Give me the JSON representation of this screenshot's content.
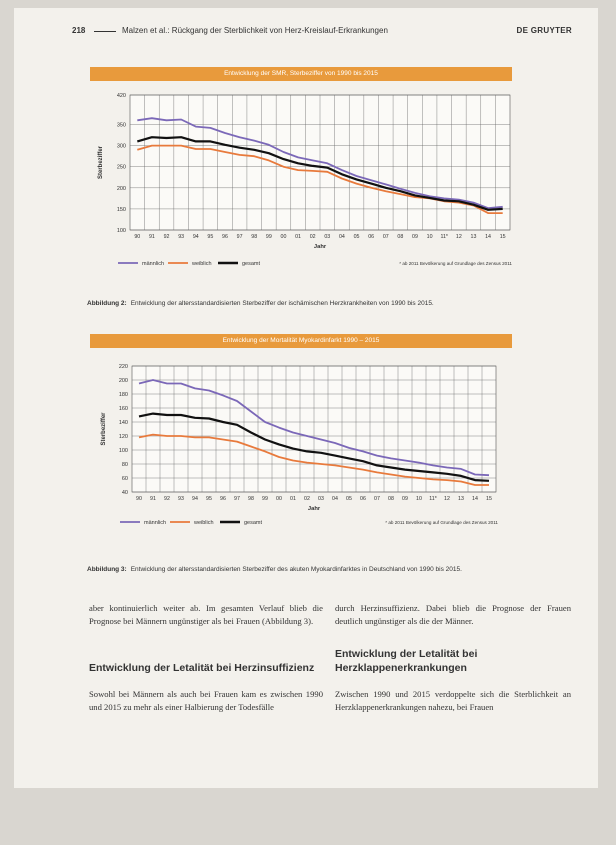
{
  "header": {
    "page_number": "218",
    "running_title": "Malzen et al.: Rückgang der Sterblichkeit von Herz-Kreislauf-Erkrankungen",
    "publisher": "DE GRUYTER"
  },
  "figure1": {
    "band_title": "Entwicklung der SMR, Sterbeziffer von 1990 bis 2015",
    "caption_label": "Abbildung 2:",
    "caption_text": "Entwicklung der altersstandardisierten Sterbeziffer der ischämischen Herzkrankheiten von 1990 bis 2015.",
    "footnote": "* ab 2011 Bevölkerung auf Grundlage des Zensus 2011"
  },
  "figure2": {
    "band_title": "Entwicklung der Mortalität Myokardinfarkt 1990 – 2015",
    "caption_label": "Abbildung 3:",
    "caption_text": "Entwicklung der altersstandardisierten Sterbeziffer des akuten Myokardinfarktes in Deutschland von 1990 bis 2015.",
    "footnote": "* ab 2011 Bevölkerung auf Grundlage des Zensus 2011"
  },
  "chart_data": [
    {
      "type": "line",
      "ylabel": "Sterbeziffer",
      "xlabel": "Jahr",
      "categories": [
        "90",
        "91",
        "92",
        "93",
        "94",
        "95",
        "96",
        "97",
        "98",
        "99",
        "00",
        "01",
        "02",
        "03",
        "04",
        "05",
        "06",
        "07",
        "08",
        "09",
        "10",
        "11*",
        "12",
        "13",
        "14",
        "15"
      ],
      "ylim": [
        100,
        420
      ],
      "yticks": [
        100,
        150,
        200,
        250,
        300,
        350,
        420
      ],
      "grid": true,
      "legend": "bottom-left",
      "series": [
        {
          "name": "männlich",
          "color": "#7b68b8",
          "values": [
            360,
            365,
            360,
            362,
            345,
            342,
            330,
            320,
            312,
            302,
            285,
            272,
            265,
            258,
            242,
            228,
            218,
            208,
            198,
            188,
            180,
            175,
            172,
            165,
            152,
            155
          ]
        },
        {
          "name": "weiblich",
          "color": "#e87a3c",
          "values": [
            290,
            300,
            300,
            300,
            292,
            292,
            285,
            278,
            275,
            265,
            250,
            242,
            240,
            238,
            222,
            210,
            200,
            192,
            185,
            178,
            175,
            168,
            165,
            158,
            140,
            140
          ]
        },
        {
          "name": "gesamt",
          "color": "#111111",
          "values": [
            310,
            320,
            318,
            320,
            310,
            310,
            302,
            295,
            290,
            282,
            268,
            258,
            252,
            248,
            232,
            220,
            210,
            200,
            192,
            182,
            176,
            170,
            168,
            160,
            148,
            150
          ]
        }
      ]
    },
    {
      "type": "line",
      "ylabel": "Sterbeziffer",
      "xlabel": "Jahr",
      "categories": [
        "90",
        "91",
        "92",
        "93",
        "94",
        "95",
        "96",
        "97",
        "98",
        "99",
        "00",
        "01",
        "02",
        "03",
        "04",
        "05",
        "06",
        "07",
        "08",
        "09",
        "10",
        "11*",
        "12",
        "13",
        "14",
        "15"
      ],
      "ylim": [
        40,
        220
      ],
      "yticks": [
        40,
        60,
        80,
        100,
        120,
        140,
        160,
        180,
        200,
        220
      ],
      "grid": true,
      "legend": "bottom-left",
      "series": [
        {
          "name": "männlich",
          "color": "#7b68b8",
          "values": [
            195,
            200,
            195,
            195,
            188,
            185,
            178,
            170,
            155,
            140,
            132,
            125,
            120,
            115,
            110,
            103,
            98,
            92,
            88,
            85,
            82,
            78,
            75,
            73,
            65,
            64
          ]
        },
        {
          "name": "weiblich",
          "color": "#e87a3c",
          "values": [
            118,
            122,
            120,
            120,
            118,
            118,
            115,
            112,
            105,
            98,
            90,
            85,
            82,
            80,
            78,
            75,
            72,
            68,
            65,
            62,
            60,
            58,
            57,
            55,
            50,
            50
          ]
        },
        {
          "name": "gesamt",
          "color": "#111111",
          "values": [
            148,
            152,
            150,
            150,
            146,
            145,
            140,
            136,
            125,
            115,
            108,
            102,
            98,
            96,
            92,
            88,
            84,
            78,
            75,
            72,
            70,
            68,
            66,
            63,
            57,
            56
          ]
        }
      ]
    }
  ],
  "body": {
    "left_para1": "aber kontinuierlich weiter ab. Im gesamten Verlauf blieb die Prognose bei Männern ungünstiger als bei Frauen (Abbildung 3).",
    "left_heading": "Entwicklung der Letalität bei Herzinsuffizienz",
    "left_para2": "Sowohl bei Männern als auch bei Frauen kam es zwischen 1990 und 2015 zu mehr als einer Halbierung der Todesfälle",
    "right_para1": "durch Herzinsuffizienz. Dabei blieb die Prognose der Frauen deutlich ungünstiger als die der Männer.",
    "right_heading": "Entwicklung der Letalität bei Herzklappenerkrankungen",
    "right_para2": "Zwischen 1990 und 2015 verdoppelte sich die Sterblichkeit an Herzklappenerkrankungen nahezu, bei Frauen"
  }
}
